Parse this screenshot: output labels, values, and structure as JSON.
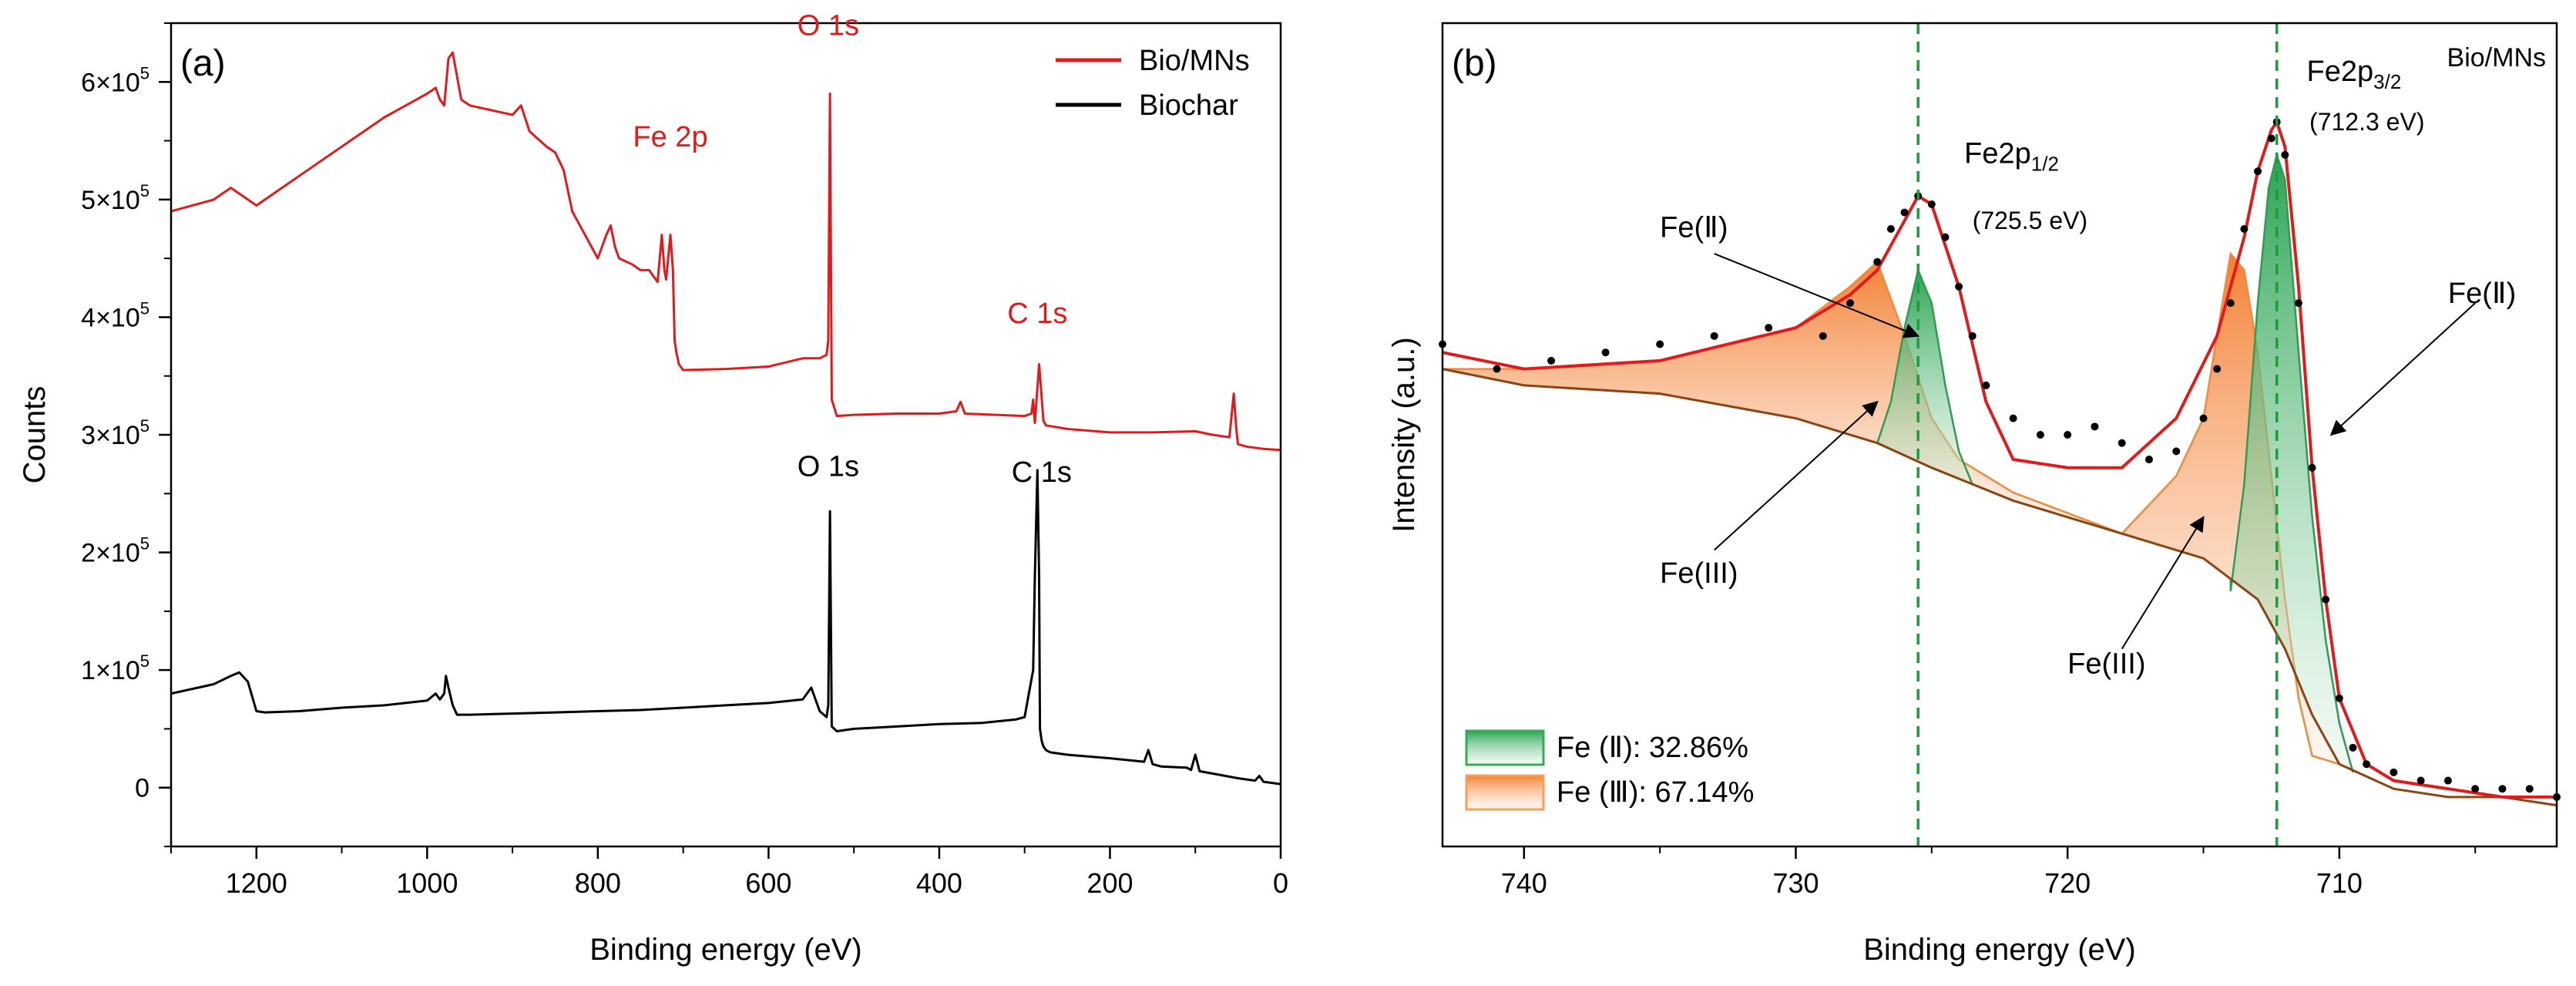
{
  "chart_data": [
    {
      "type": "line",
      "panel_label": "(a)",
      "xlabel": "Binding energy (eV)",
      "ylabel": "Counts",
      "xlim": [
        1300,
        0
      ],
      "ylim": [
        -50000,
        650000
      ],
      "x_ticks": [
        1200,
        1000,
        800,
        600,
        400,
        200,
        0
      ],
      "y_ticks": [
        {
          "value": 0,
          "label": "0"
        },
        {
          "value": 100000,
          "base": "1×10",
          "exp": "5"
        },
        {
          "value": 200000,
          "base": "2×10",
          "exp": "5"
        },
        {
          "value": 300000,
          "base": "3×10",
          "exp": "5"
        },
        {
          "value": 400000,
          "base": "4×10",
          "exp": "5"
        },
        {
          "value": 500000,
          "base": "5×10",
          "exp": "5"
        },
        {
          "value": 600000,
          "base": "6×10",
          "exp": "5"
        }
      ],
      "legend": {
        "position": "top-right",
        "entries": [
          {
            "name": "Bio/MNs",
            "color": "#e31a1c"
          },
          {
            "name": "Biochar",
            "color": "#000000"
          }
        ]
      },
      "series": [
        {
          "name": "Bio/MNs",
          "color": "#e31a1c",
          "x": [
            1300,
            1250,
            1230,
            1220,
            1200,
            1150,
            1100,
            1050,
            1000,
            990,
            985,
            980,
            975,
            970,
            960,
            950,
            900,
            890,
            880,
            860,
            850,
            840,
            830,
            800,
            790,
            785,
            780,
            775,
            760,
            750,
            740,
            730,
            725,
            722,
            720,
            715,
            712,
            710,
            708,
            705,
            700,
            650,
            600,
            560,
            550,
            540,
            532,
            530,
            528,
            526,
            520,
            500,
            450,
            400,
            380,
            375,
            370,
            300,
            292,
            290,
            288,
            285,
            283,
            280,
            278,
            275,
            250,
            200,
            150,
            100,
            80,
            60,
            55,
            52,
            50,
            40,
            20,
            0
          ],
          "y": [
            490000,
            500000,
            510000,
            505000,
            495000,
            520000,
            545000,
            570000,
            590000,
            595000,
            585000,
            580000,
            620000,
            625000,
            585000,
            580000,
            572000,
            580000,
            558000,
            545000,
            540000,
            525000,
            490000,
            450000,
            470000,
            478000,
            460000,
            450000,
            445000,
            440000,
            440000,
            430000,
            470000,
            440000,
            432000,
            470000,
            440000,
            380000,
            370000,
            360000,
            355000,
            356000,
            358000,
            365000,
            365000,
            365000,
            368000,
            380000,
            590000,
            330000,
            316000,
            317000,
            318000,
            318000,
            320000,
            328000,
            318000,
            316000,
            318000,
            330000,
            310000,
            340000,
            360000,
            332000,
            312000,
            308000,
            305000,
            302000,
            302000,
            303000,
            300000,
            298000,
            335000,
            305000,
            292000,
            290000,
            288000,
            287000
          ]
        },
        {
          "name": "Biochar",
          "color": "#000000",
          "x": [
            1300,
            1250,
            1230,
            1220,
            1210,
            1200,
            1190,
            1150,
            1100,
            1050,
            1000,
            990,
            985,
            980,
            978,
            975,
            970,
            965,
            950,
            900,
            850,
            800,
            750,
            700,
            650,
            600,
            560,
            550,
            545,
            540,
            532,
            530,
            528,
            526,
            520,
            500,
            450,
            400,
            350,
            310,
            300,
            295,
            290,
            288,
            285,
            283,
            282,
            280,
            278,
            275,
            270,
            250,
            200,
            160,
            155,
            150,
            140,
            110,
            105,
            100,
            95,
            80,
            50,
            30,
            25,
            20,
            0
          ],
          "y": [
            80000,
            88000,
            95000,
            98000,
            90000,
            65000,
            64000,
            65000,
            68000,
            70000,
            74000,
            80000,
            75000,
            80000,
            95000,
            85000,
            70000,
            62000,
            62000,
            63000,
            64000,
            65000,
            66000,
            68000,
            70000,
            72000,
            75000,
            85000,
            75000,
            65000,
            60000,
            70000,
            235000,
            52000,
            48000,
            50000,
            52000,
            54000,
            55000,
            58000,
            60000,
            80000,
            100000,
            180000,
            270000,
            180000,
            50000,
            40000,
            35000,
            32000,
            30000,
            28000,
            25000,
            22000,
            32000,
            20000,
            18000,
            17000,
            15000,
            28000,
            14000,
            12000,
            8000,
            6000,
            10000,
            5000,
            3000
          ]
        }
      ],
      "annotations": [
        {
          "text": "O 1s",
          "x": 530,
          "y": 640000,
          "color": "#e31a1c"
        },
        {
          "text": "Fe 2p",
          "x": 715,
          "y": 545000,
          "color": "#e31a1c"
        },
        {
          "text": "C 1s",
          "x": 285,
          "y": 395000,
          "color": "#e31a1c"
        },
        {
          "text": "O 1s",
          "x": 530,
          "y": 265000,
          "color": "#000000"
        },
        {
          "text": "C 1s",
          "x": 280,
          "y": 260000,
          "color": "#000000"
        }
      ]
    },
    {
      "type": "area",
      "panel_label": "(b)",
      "title": "Bio/MNs",
      "xlabel": "Binding energy (eV)",
      "ylabel": "Intensity (a.u.)",
      "xlim": [
        743,
        702
      ],
      "ylim": [
        0,
        100
      ],
      "x_ticks": [
        740,
        730,
        720,
        710
      ],
      "grid": false,
      "reference_lines": [
        725.5,
        712.3
      ],
      "legend": {
        "position": "bottom-left",
        "entries": [
          {
            "name": "Fe (Ⅱ): 32.86%",
            "color": "#3aa85b"
          },
          {
            "name": "Fe (Ⅲ): 67.14%",
            "color": "#f4a25a"
          }
        ]
      },
      "series": [
        {
          "name": "background",
          "color": "#8b4513",
          "x": [
            743,
            740,
            735,
            730,
            727,
            725,
            722,
            718,
            715,
            713,
            712,
            711,
            710,
            708,
            706,
            704,
            702
          ],
          "y": [
            58,
            56,
            55,
            52,
            49,
            46,
            42,
            38,
            35,
            30,
            24,
            16,
            10,
            7,
            6,
            6,
            5
          ]
        },
        {
          "name": "Fe(III) 2p1/2",
          "color": "#f08a3c",
          "x": [
            743,
            740,
            735,
            730,
            728,
            727,
            726,
            725,
            724,
            722,
            718,
            715
          ],
          "y": [
            58,
            58,
            59,
            63,
            68,
            71,
            62,
            52,
            47,
            43,
            38,
            35
          ]
        },
        {
          "name": "Fe(II) 2p1/2",
          "color": "#2e9c55",
          "x": [
            727,
            726.5,
            726,
            725.5,
            725,
            724.5,
            724,
            723.5,
            722
          ],
          "y": [
            49,
            54,
            63,
            70,
            66,
            56,
            48,
            44,
            42
          ]
        },
        {
          "name": "Fe(III) 2p3/2",
          "color": "#f08a3c",
          "x": [
            718,
            716,
            715,
            714.5,
            714,
            713.5,
            713,
            712.5,
            712,
            711.5,
            711,
            710
          ],
          "y": [
            38,
            45,
            52,
            62,
            72,
            70,
            60,
            45,
            30,
            18,
            11,
            10
          ]
        },
        {
          "name": "Fe(II) 2p3/2",
          "color": "#2e9c55",
          "x": [
            714,
            713.5,
            713,
            712.6,
            712.3,
            712,
            711.5,
            711,
            710.5,
            710,
            709.5
          ],
          "y": [
            31,
            44,
            66,
            80,
            84,
            81,
            60,
            40,
            25,
            15,
            9
          ]
        },
        {
          "name": "fitted envelope",
          "color": "#e31a1c",
          "x": [
            743,
            740,
            735,
            730,
            728,
            727,
            726,
            725.5,
            725,
            724,
            723,
            722,
            720,
            718,
            716,
            714.5,
            713.5,
            713,
            712.5,
            712.3,
            712,
            711.5,
            711,
            710.5,
            710,
            709,
            708,
            706,
            704,
            702
          ],
          "y": [
            60,
            58,
            59,
            63,
            67,
            70,
            76,
            79,
            78,
            68,
            54,
            47,
            46,
            46,
            52,
            62,
            74,
            82,
            87,
            88,
            85,
            68,
            46,
            30,
            18,
            10,
            8,
            7,
            6,
            6
          ]
        },
        {
          "name": "raw data",
          "color": "#000000",
          "x": [
            743,
            741,
            739,
            737,
            735,
            733,
            731,
            729,
            728,
            727,
            726.5,
            726,
            725.5,
            725,
            724.5,
            724,
            723.5,
            723,
            722,
            721,
            720,
            719,
            718,
            717,
            716,
            715,
            714.5,
            714,
            713.5,
            713,
            712.5,
            712.3,
            712,
            711.5,
            711,
            710.5,
            710,
            709.5,
            709,
            708,
            707,
            706,
            705,
            704,
            703,
            702
          ],
          "y": [
            61,
            58,
            59,
            60,
            61,
            62,
            63,
            62,
            66,
            71,
            75,
            77,
            79,
            78,
            74,
            68,
            62,
            56,
            52,
            50,
            50,
            51,
            49,
            47,
            48,
            52,
            58,
            66,
            75,
            82,
            86,
            88,
            84,
            66,
            46,
            30,
            18,
            12,
            10,
            9,
            8,
            8,
            7,
            7,
            7,
            6
          ]
        }
      ],
      "annotations": [
        {
          "text": "Fe2p",
          "sub": "1/2",
          "x": 723.8,
          "y": 83
        },
        {
          "text": "(725.5 eV)",
          "x": 723.5,
          "y": 75
        },
        {
          "text": "Fe2p",
          "sub": "3/2",
          "x": 711.2,
          "y": 93
        },
        {
          "text": "(712.3 eV)",
          "x": 711.1,
          "y": 87
        },
        {
          "text": "Fe(Ⅱ)",
          "x": 735,
          "y": 74
        },
        {
          "text": "Fe(Ⅱ)",
          "x": 706,
          "y": 66
        },
        {
          "text": "Fe(III)",
          "x": 735,
          "y": 32
        },
        {
          "text": "Fe(III)",
          "x": 720,
          "y": 21
        }
      ]
    }
  ]
}
